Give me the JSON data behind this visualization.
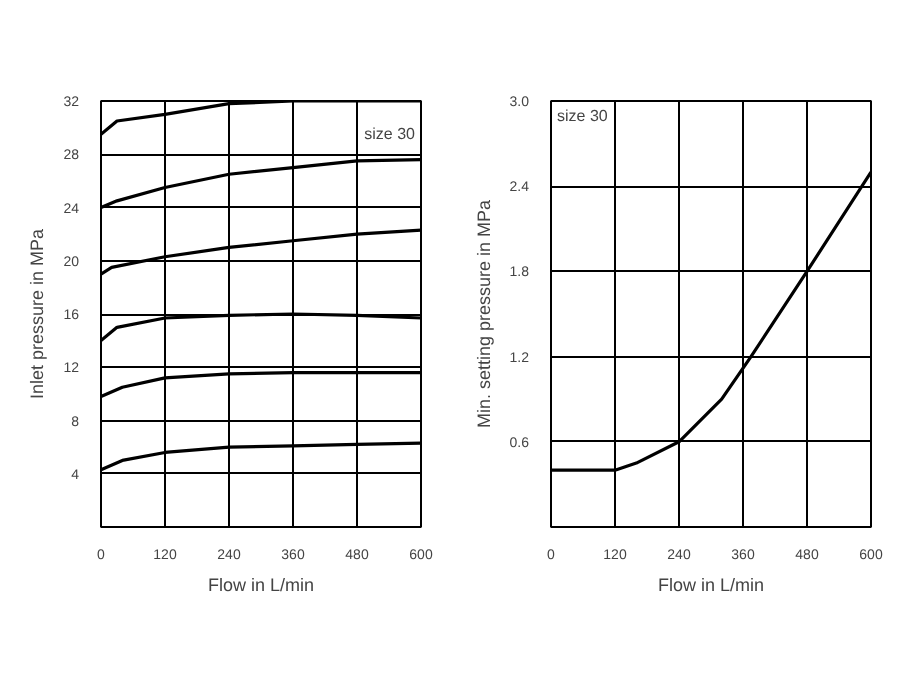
{
  "chart_data": [
    {
      "type": "line",
      "xlabel": "Flow in L/min",
      "ylabel": "Inlet pressure in MPa",
      "annotations": [
        "size 30"
      ],
      "grid": true,
      "marker": "none",
      "line_style": "solid",
      "xlim": [
        0,
        600
      ],
      "ylim": [
        0,
        32
      ],
      "xticks": [
        0,
        120,
        240,
        360,
        480,
        600
      ],
      "yticks": [
        4,
        8,
        12,
        16,
        20,
        24,
        28,
        32
      ],
      "series": [
        {
          "color": "#000000",
          "x": [
            0,
            30,
            120,
            240,
            360,
            480,
            600
          ],
          "values": [
            29.5,
            30.5,
            31,
            31.8,
            32,
            32,
            32
          ]
        },
        {
          "color": "#000000",
          "x": [
            0,
            30,
            120,
            240,
            360,
            480,
            600
          ],
          "values": [
            24,
            24.5,
            25.5,
            26.5,
            27,
            27.5,
            27.6
          ]
        },
        {
          "color": "#000000",
          "x": [
            0,
            20,
            120,
            240,
            360,
            480,
            600
          ],
          "values": [
            19,
            19.5,
            20.3,
            21,
            21.5,
            22,
            22.3
          ]
        },
        {
          "color": "#000000",
          "x": [
            0,
            30,
            120,
            240,
            360,
            480,
            600
          ],
          "values": [
            14,
            15,
            15.7,
            15.9,
            16,
            15.9,
            15.7
          ]
        },
        {
          "color": "#000000",
          "x": [
            0,
            40,
            120,
            240,
            360,
            480,
            600
          ],
          "values": [
            9.8,
            10.5,
            11.2,
            11.5,
            11.6,
            11.6,
            11.6
          ]
        },
        {
          "color": "#000000",
          "x": [
            0,
            40,
            120,
            240,
            360,
            480,
            600
          ],
          "values": [
            4.3,
            5,
            5.6,
            6,
            6.1,
            6.2,
            6.3
          ]
        }
      ]
    },
    {
      "type": "line",
      "xlabel": "Flow in L/min",
      "ylabel": "Min. setting pressure in MPa",
      "annotations": [
        "size 30"
      ],
      "grid": true,
      "marker": "none",
      "line_style": "solid",
      "xlim": [
        0,
        600
      ],
      "ylim": [
        0,
        3
      ],
      "xticks": [
        0,
        120,
        240,
        360,
        480,
        600
      ],
      "yticks": [
        0.6,
        1.2,
        1.8,
        2.4,
        {
          "value": 3,
          "label": "3.0"
        }
      ],
      "series": [
        {
          "color": "#000000",
          "x": [
            0,
            120,
            160,
            240,
            320,
            375,
            480,
            600
          ],
          "values": [
            0.4,
            0.4,
            0.45,
            0.6,
            0.9,
            1.2,
            1.8,
            2.5
          ]
        }
      ]
    }
  ]
}
